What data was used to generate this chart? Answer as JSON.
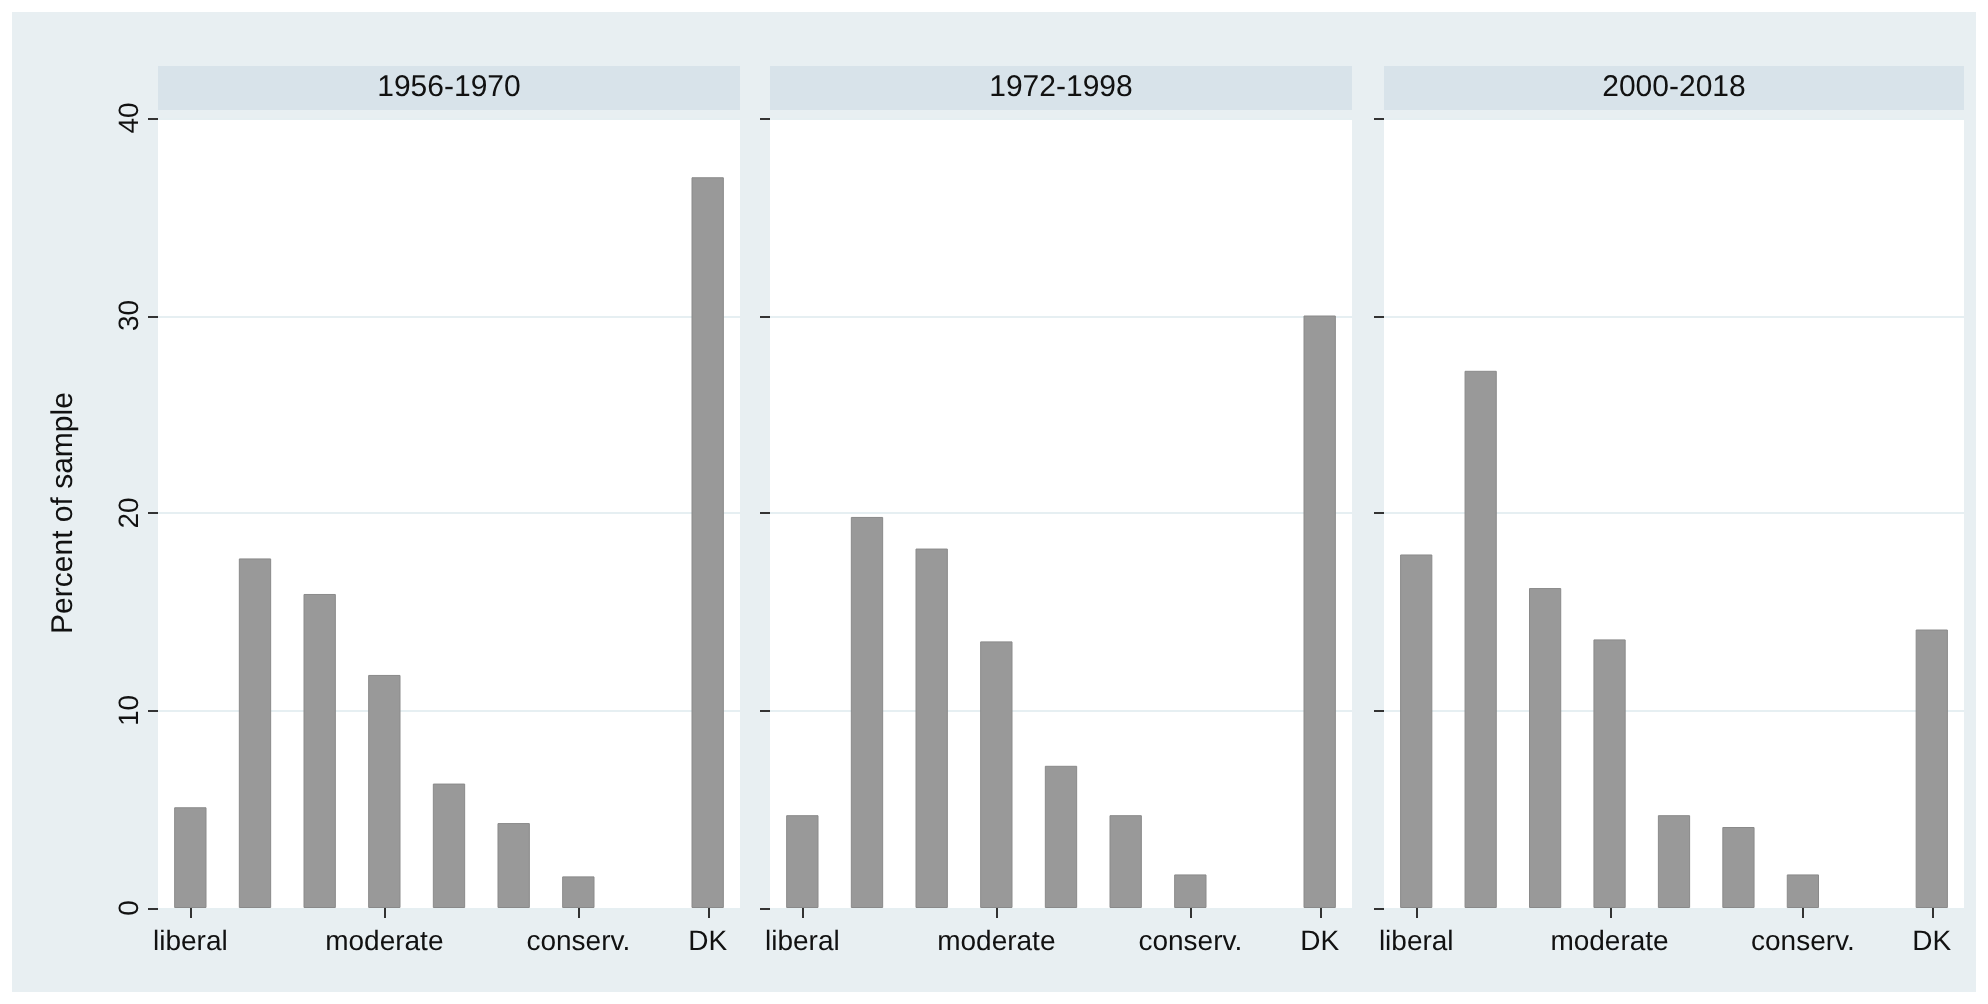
{
  "chart_data": [
    {
      "type": "bar",
      "title": "1956-1970",
      "ylabel": "Percent of sample",
      "categories": [
        "liberal",
        null,
        null,
        "moderate",
        null,
        null,
        "conserv.",
        null,
        "DK"
      ],
      "series": [
        {
          "color": "#999999",
          "values": [
            5.1,
            17.7,
            15.9,
            11.8,
            6.3,
            4.3,
            1.6,
            null,
            37.0
          ]
        }
      ],
      "ylim": [
        0,
        40
      ],
      "yticks": [
        0,
        10,
        20,
        30,
        40
      ],
      "grid": "y"
    },
    {
      "type": "bar",
      "title": "1972-1998",
      "categories": [
        "liberal",
        null,
        null,
        "moderate",
        null,
        null,
        "conserv.",
        null,
        "DK"
      ],
      "series": [
        {
          "color": "#999999",
          "values": [
            4.7,
            19.8,
            18.2,
            13.5,
            7.2,
            4.7,
            1.7,
            null,
            30.0
          ]
        }
      ],
      "ylim": [
        0,
        40
      ],
      "yticks": [
        0,
        10,
        20,
        30,
        40
      ],
      "grid": "y",
      "tick_labels": "x"
    },
    {
      "type": "bar",
      "title": "2000-2018",
      "categories": [
        "liberal",
        null,
        null,
        "moderate",
        null,
        null,
        "conserv.",
        null,
        "DK"
      ],
      "series": [
        {
          "color": "#999999",
          "values": [
            17.9,
            27.2,
            16.2,
            13.6,
            4.7,
            4.1,
            1.7,
            null,
            14.1
          ]
        }
      ],
      "ylim": [
        0,
        40
      ],
      "yticks": [
        0,
        10,
        20,
        30,
        40
      ],
      "grid": "y",
      "tick_labels": "x"
    }
  ]
}
